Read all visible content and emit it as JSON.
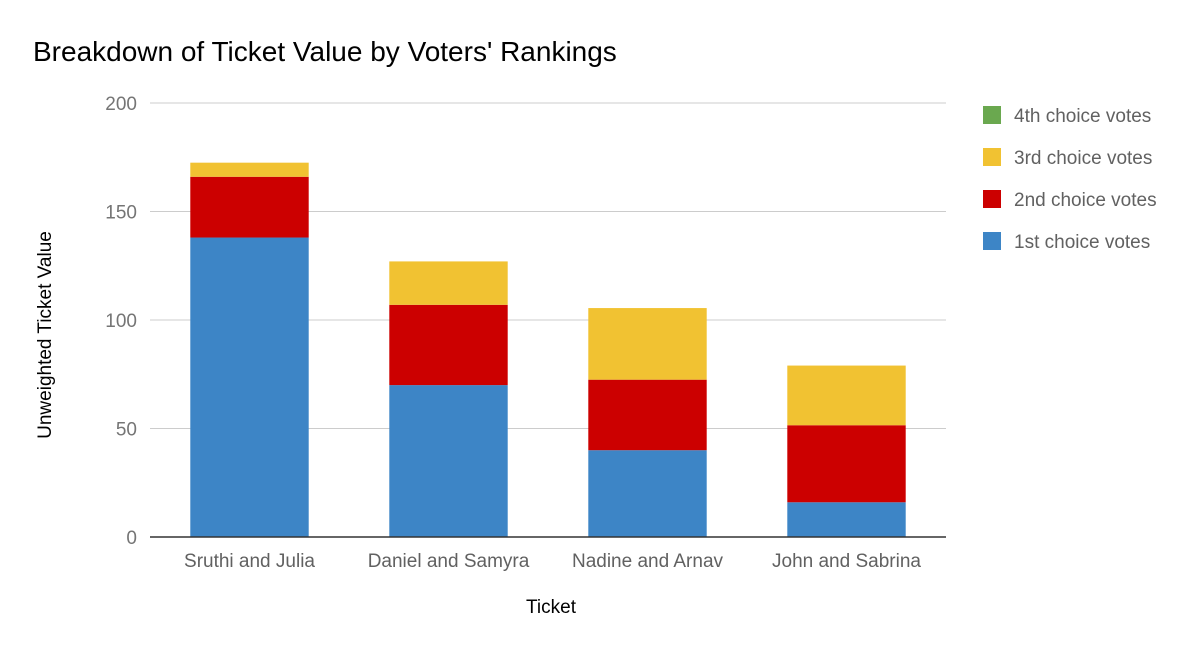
{
  "chart_data": {
    "type": "bar",
    "stacked": true,
    "title": "Breakdown of Ticket Value by Voters' Rankings",
    "xlabel": "Ticket",
    "ylabel": "Unweighted Ticket Value",
    "ylim": [
      0,
      200
    ],
    "yticks": [
      "0",
      "50",
      "100",
      "150",
      "200"
    ],
    "grid": true,
    "legend_position": "right",
    "categories": [
      "Sruthi and Julia",
      "Daniel and Samyra",
      "Nadine and Arnav",
      "John and Sabrina"
    ],
    "series": [
      {
        "name": "1st choice votes",
        "color": "#3d85c6",
        "values": [
          138,
          70,
          40,
          16
        ]
      },
      {
        "name": "2nd choice votes",
        "color": "#cc0000",
        "values": [
          28,
          37,
          32.5,
          35.5
        ]
      },
      {
        "name": "3rd choice votes",
        "color": "#f1c232",
        "values": [
          6.5,
          20,
          33,
          27.5
        ]
      },
      {
        "name": "4th choice votes",
        "color": "#6aa84f",
        "values": [
          0,
          0,
          0,
          0
        ]
      }
    ],
    "legend_order": [
      "4th choice votes",
      "3rd choice votes",
      "2nd choice votes",
      "1st choice votes"
    ]
  }
}
